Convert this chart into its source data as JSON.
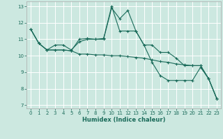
{
  "xlabel": "Humidex (Indice chaleur)",
  "bg_color": "#cce8e0",
  "grid_color": "#ffffff",
  "line_color": "#1a6b5a",
  "xlim": [
    -0.5,
    23.5
  ],
  "ylim": [
    6.8,
    13.3
  ],
  "yticks": [
    7,
    8,
    9,
    10,
    11,
    12,
    13
  ],
  "xticks": [
    0,
    1,
    2,
    3,
    4,
    5,
    6,
    7,
    8,
    9,
    10,
    11,
    12,
    13,
    14,
    15,
    16,
    17,
    18,
    19,
    20,
    21,
    22,
    23
  ],
  "series1_x": [
    0,
    1,
    2,
    3,
    4,
    5,
    6,
    7,
    8,
    9,
    10,
    11,
    12,
    13,
    14,
    15,
    16,
    17,
    18,
    19,
    20,
    21,
    22,
    23
  ],
  "series1_y": [
    11.6,
    10.75,
    10.35,
    10.35,
    10.35,
    10.3,
    10.1,
    10.1,
    10.05,
    10.05,
    10.0,
    10.0,
    9.95,
    9.9,
    9.85,
    9.75,
    9.65,
    9.6,
    9.5,
    9.45,
    9.4,
    9.4,
    8.6,
    7.4
  ],
  "series2_x": [
    0,
    1,
    2,
    3,
    4,
    5,
    6,
    7,
    8,
    9,
    10,
    11,
    12,
    13,
    14,
    15,
    16,
    17,
    18,
    19,
    20,
    21,
    22,
    23
  ],
  "series2_y": [
    11.6,
    10.75,
    10.35,
    10.65,
    10.65,
    10.35,
    10.85,
    11.0,
    11.0,
    11.0,
    12.9,
    12.25,
    12.75,
    11.5,
    10.65,
    10.65,
    10.2,
    10.2,
    9.85,
    9.4,
    9.4,
    9.4,
    8.6,
    7.4
  ],
  "series3_x": [
    0,
    1,
    2,
    3,
    4,
    5,
    6,
    7,
    8,
    9,
    10,
    11,
    12,
    13,
    14,
    15,
    16,
    17,
    18,
    19,
    20,
    21,
    22,
    23
  ],
  "series3_y": [
    11.6,
    10.75,
    10.35,
    10.35,
    10.35,
    10.3,
    11.0,
    11.05,
    11.0,
    11.05,
    13.0,
    11.5,
    11.5,
    11.5,
    10.65,
    9.6,
    8.8,
    8.5,
    8.5,
    8.5,
    8.5,
    9.3,
    8.6,
    7.4
  ]
}
